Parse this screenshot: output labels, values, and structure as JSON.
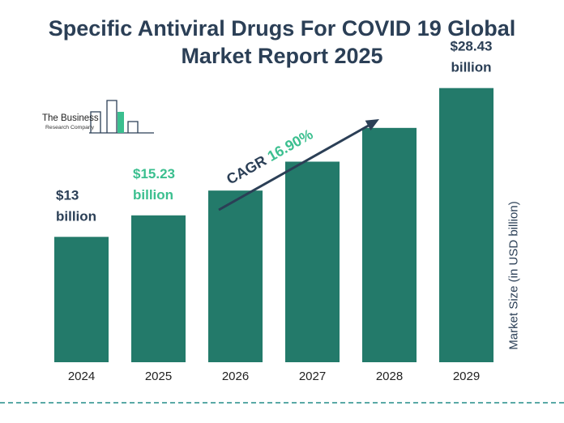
{
  "chart_data": {
    "type": "bar",
    "title_lines": [
      "Specific Antiviral Drugs For COVID 19 Global",
      "Market Report 2025"
    ],
    "categories": [
      "2024",
      "2025",
      "2026",
      "2027",
      "2028",
      "2029"
    ],
    "values": [
      13.0,
      15.23,
      17.8,
      20.8,
      24.3,
      28.43
    ],
    "ylabel": "Market Size (in USD billion)",
    "ylim": [
      0,
      30
    ],
    "grid": false,
    "bar_color": "#237a6a",
    "data_labels": [
      {
        "index": 0,
        "line1": "$13",
        "line2": "billion",
        "color": "#2b3f56"
      },
      {
        "index": 1,
        "line1": "$15.23",
        "line2": "billion",
        "color": "#3bbf8f"
      },
      {
        "index": 5,
        "line1": "$28.43",
        "line2": "billion",
        "color": "#2b3f56"
      }
    ],
    "annotation": {
      "prefix": "CAGR",
      "value": "16.90%",
      "prefix_color": "#2b3f56",
      "value_color": "#3bbf8f"
    }
  },
  "logo": {
    "line1": "The Business",
    "line2": "Research Company"
  },
  "colors": {
    "title": "#2b3f56",
    "accent": "#3bbf8f",
    "bar": "#237a6a",
    "divider": "#5aa9a6"
  }
}
